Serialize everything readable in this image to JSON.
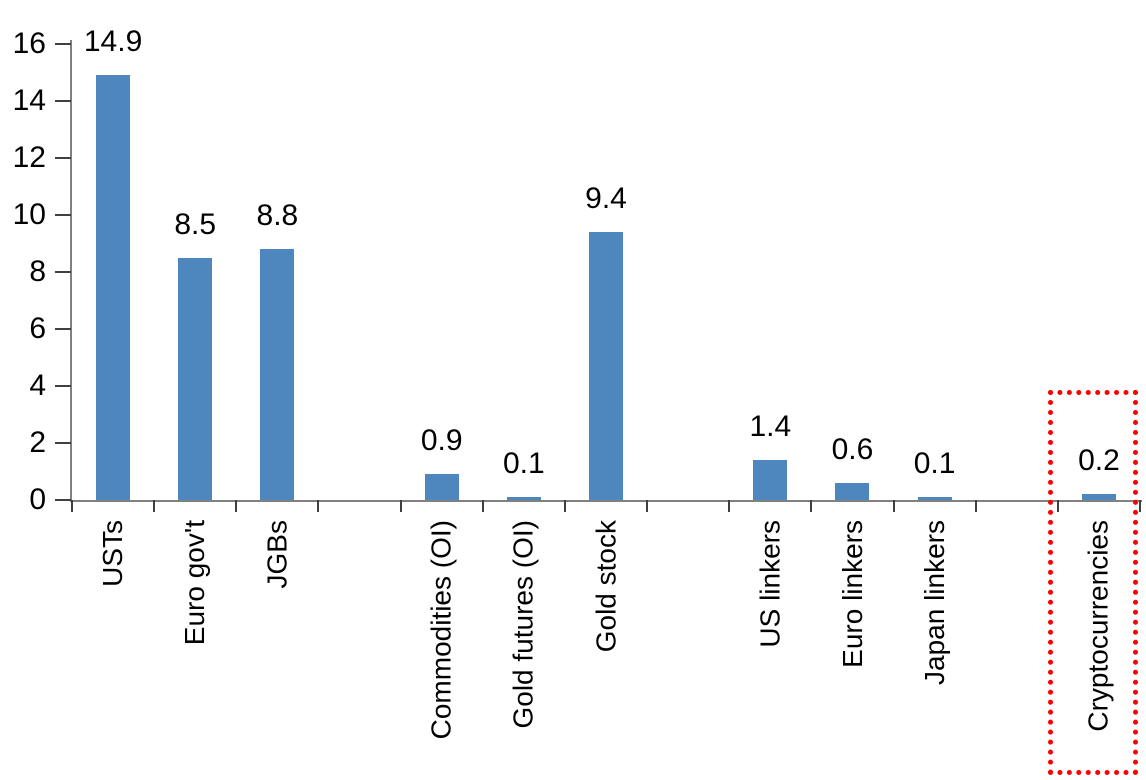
{
  "chart_data": {
    "type": "bar",
    "title": "",
    "xlabel": "",
    "ylabel": "",
    "categories": [
      "USTs",
      "Euro gov't",
      "JGBs",
      null,
      "Commodities (OI)",
      "Gold futures (OI)",
      "Gold stock",
      null,
      "US linkers",
      "Euro linkers",
      "Japan linkers",
      null,
      "Cryptocurrencies"
    ],
    "values": [
      14.9,
      8.5,
      8.8,
      null,
      0.9,
      0.1,
      9.4,
      null,
      1.4,
      0.6,
      0.1,
      null,
      0.2
    ],
    "data_labels_shown": true,
    "data_label_decimals": 1,
    "ylim": [
      0,
      16
    ],
    "y_ticks": [
      0,
      2,
      4,
      6,
      8,
      10,
      12,
      14,
      16
    ],
    "grid": false,
    "legend": null,
    "category_label_rotation_degrees": -90,
    "colors": {
      "bar": "#4E87BD",
      "axis_line": "#808080",
      "tick_mark": "#404040",
      "text": "#000000",
      "background": "#FFFFFF",
      "highlight_border": "#FF0000"
    },
    "highlight": {
      "category": "Cryptocurrencies",
      "style": "red-dotted-rectangle",
      "encloses": [
        "bar",
        "value-label",
        "category-label"
      ]
    }
  }
}
